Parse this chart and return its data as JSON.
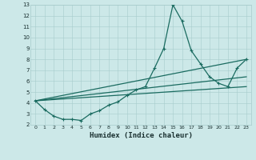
{
  "xlabel": "Humidex (Indice chaleur)",
  "background_color": "#cce8e8",
  "grid_color": "#a8cccc",
  "line_color": "#1a6b60",
  "xlim": [
    -0.5,
    23.5
  ],
  "ylim": [
    2,
    13
  ],
  "xticks": [
    0,
    1,
    2,
    3,
    4,
    5,
    6,
    7,
    8,
    9,
    10,
    11,
    12,
    13,
    14,
    15,
    16,
    17,
    18,
    19,
    20,
    21,
    22,
    23
  ],
  "yticks": [
    2,
    3,
    4,
    5,
    6,
    7,
    8,
    9,
    10,
    11,
    12,
    13
  ],
  "main_line": {
    "x": [
      0,
      1,
      2,
      3,
      4,
      5,
      6,
      7,
      8,
      9,
      10,
      11,
      12,
      13,
      14,
      15,
      16,
      17,
      18,
      19,
      20,
      21,
      22,
      23
    ],
    "y": [
      4.2,
      3.4,
      2.8,
      2.5,
      2.5,
      2.4,
      3.0,
      3.3,
      3.8,
      4.1,
      4.7,
      5.2,
      5.5,
      7.2,
      9.0,
      13.0,
      11.5,
      8.8,
      7.6,
      6.4,
      5.8,
      5.5,
      7.2,
      8.0
    ]
  },
  "trend_lines": [
    {
      "x": [
        0,
        23
      ],
      "y": [
        4.2,
        8.0
      ]
    },
    {
      "x": [
        0,
        23
      ],
      "y": [
        4.2,
        6.4
      ]
    },
    {
      "x": [
        0,
        23
      ],
      "y": [
        4.2,
        5.5
      ]
    }
  ],
  "marker": "+",
  "marker_size": 3,
  "marker_linewidth": 0.8,
  "linewidth": 0.9,
  "xlabel_fontsize": 6.5,
  "tick_fontsize": 5.5
}
